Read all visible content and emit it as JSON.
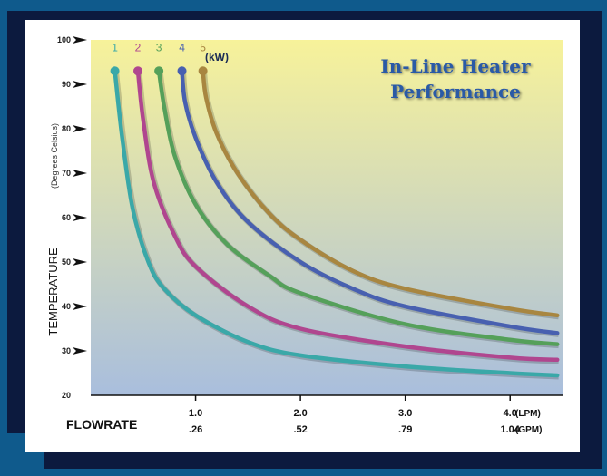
{
  "chart_data": {
    "type": "line",
    "title_lines": [
      "In-Line Heater",
      "Performance"
    ],
    "ylabel": "TEMPERATURE",
    "ylabel_sub": "(Degrees Celsius)",
    "xlabel": "FLOWRATE",
    "xlabel_lpm_unit": "(LPM)",
    "xlabel_gpm_unit": "(GPM)",
    "xlim": [
      0,
      4.5
    ],
    "ylim": [
      20,
      100
    ],
    "yticks": [
      20,
      30,
      40,
      50,
      60,
      70,
      80,
      90,
      100
    ],
    "xticks_lpm": [
      "1.0",
      "2.0",
      "3.0",
      "4.0"
    ],
    "xticks_gpm": [
      ".26",
      ".52",
      ".79",
      "1.04"
    ],
    "xtick_values": [
      1.0,
      2.0,
      3.0,
      4.0
    ],
    "legend_unit": "(kW)",
    "background_gradient": [
      "#f7f29a",
      "#a9bedd"
    ],
    "series": [
      {
        "name": "1",
        "color": "#3aa8a8",
        "x": [
          0.23,
          0.3,
          0.4,
          0.55,
          0.7,
          1.0,
          1.5,
          2.0,
          3.0,
          4.0,
          4.45
        ],
        "y": [
          93,
          78,
          62,
          50,
          44,
          38,
          32,
          29,
          26.5,
          25,
          24.5
        ]
      },
      {
        "name": "2",
        "color": "#b0468f",
        "x": [
          0.45,
          0.5,
          0.6,
          0.8,
          1.0,
          1.5,
          2.0,
          3.0,
          4.0,
          4.45
        ],
        "y": [
          93,
          82,
          68,
          56,
          49,
          40,
          35,
          31,
          28.5,
          28
        ]
      },
      {
        "name": "3",
        "color": "#55a05a",
        "x": [
          0.65,
          0.7,
          0.8,
          1.0,
          1.3,
          1.7,
          2.0,
          3.0,
          4.0,
          4.45
        ],
        "y": [
          93,
          85,
          74,
          63,
          54,
          47,
          43,
          36,
          32.5,
          31.5
        ]
      },
      {
        "name": "4",
        "color": "#4860b0",
        "x": [
          0.87,
          0.9,
          1.0,
          1.2,
          1.5,
          2.0,
          2.5,
          3.0,
          4.0,
          4.45
        ],
        "y": [
          93,
          86,
          78,
          68,
          59,
          50,
          44,
          40,
          35.5,
          34
        ]
      },
      {
        "name": "5",
        "color": "#a88640",
        "x": [
          1.07,
          1.1,
          1.2,
          1.4,
          1.7,
          2.0,
          2.5,
          3.0,
          4.0,
          4.45
        ],
        "y": [
          93,
          87,
          79,
          70,
          61,
          55,
          48,
          44,
          39.5,
          38
        ]
      }
    ]
  }
}
